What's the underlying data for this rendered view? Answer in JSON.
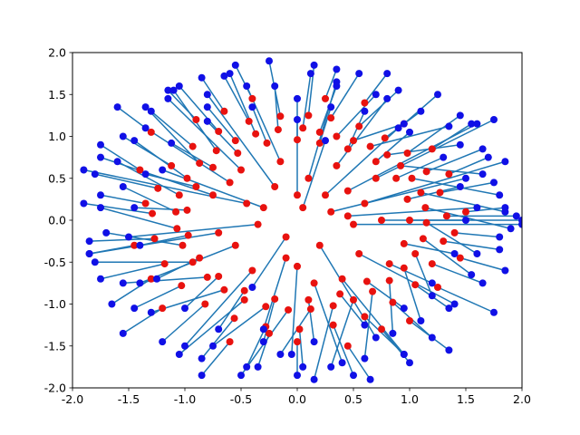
{
  "chart_data": {
    "type": "scatter",
    "title": "",
    "xlabel": "",
    "ylabel": "",
    "xlim": [
      -2.0,
      2.0
    ],
    "ylim": [
      -2.0,
      2.0
    ],
    "grid": false,
    "legend": "none",
    "xticks": [
      "-2.0",
      "-1.5",
      "-1.0",
      "-0.5",
      "0.0",
      "0.5",
      "1.0",
      "1.5",
      "2.0"
    ],
    "yticks": [
      "-2.0",
      "-1.5",
      "-1.0",
      "-0.5",
      "0.0",
      "0.5",
      "1.0",
      "1.5",
      "2.0"
    ],
    "colors": {
      "ring_points": "#e8120f",
      "displaced_points": "#1010e6",
      "displacement_lines": "#1f77b4"
    },
    "series": [
      {
        "kind": "ring",
        "marker": "circle",
        "points": [
          [
            0.05,
            1.1
          ],
          [
            0.2,
            1.05
          ],
          [
            0.35,
            1.0
          ],
          [
            0.5,
            0.95
          ],
          [
            0.65,
            0.88
          ],
          [
            0.8,
            0.78
          ],
          [
            0.92,
            0.65
          ],
          [
            1.02,
            0.5
          ],
          [
            1.1,
            0.33
          ],
          [
            1.14,
            0.15
          ],
          [
            1.15,
            -0.03
          ],
          [
            1.12,
            -0.22
          ],
          [
            1.05,
            -0.4
          ],
          [
            0.95,
            -0.57
          ],
          [
            0.82,
            -0.72
          ],
          [
            0.67,
            -0.85
          ],
          [
            0.5,
            -0.95
          ],
          [
            0.32,
            -1.02
          ],
          [
            0.12,
            -1.06
          ],
          [
            -0.08,
            -1.07
          ],
          [
            -0.28,
            -1.03
          ],
          [
            -0.47,
            -0.95
          ],
          [
            -0.65,
            -0.83
          ],
          [
            -0.8,
            -0.68
          ],
          [
            -0.93,
            -0.5
          ],
          [
            -1.02,
            -0.3
          ],
          [
            -1.07,
            -0.1
          ],
          [
            -1.08,
            0.1
          ],
          [
            -1.05,
            0.3
          ],
          [
            -0.98,
            0.5
          ],
          [
            -0.87,
            0.68
          ],
          [
            -0.72,
            0.83
          ],
          [
            -0.55,
            0.95
          ],
          [
            -0.37,
            1.03
          ],
          [
            -0.17,
            1.08
          ],
          [
            0.1,
            1.25
          ],
          [
            0.3,
            1.22
          ],
          [
            0.55,
            1.12
          ],
          [
            0.78,
            0.98
          ],
          [
            0.98,
            0.8
          ],
          [
            1.15,
            0.58
          ],
          [
            1.27,
            0.33
          ],
          [
            1.33,
            0.05
          ],
          [
            1.3,
            -0.25
          ],
          [
            1.2,
            -0.52
          ],
          [
            1.05,
            -0.77
          ],
          [
            0.85,
            -0.98
          ],
          [
            0.6,
            -1.15
          ],
          [
            0.32,
            -1.25
          ],
          [
            0.02,
            -1.3
          ],
          [
            -0.28,
            -1.27
          ],
          [
            -0.56,
            -1.17
          ],
          [
            -0.82,
            -1.0
          ],
          [
            -1.03,
            -0.78
          ],
          [
            -1.18,
            -0.52
          ],
          [
            -1.27,
            -0.22
          ],
          [
            -1.29,
            0.08
          ],
          [
            -1.24,
            0.38
          ],
          [
            -1.12,
            0.65
          ],
          [
            -0.93,
            0.88
          ],
          [
            -0.7,
            1.06
          ],
          [
            -0.43,
            1.18
          ],
          [
            -0.15,
            1.24
          ],
          [
            0.2,
            0.92
          ],
          [
            0.45,
            0.85
          ],
          [
            0.7,
            0.7
          ],
          [
            0.88,
            0.5
          ],
          [
            0.98,
            0.25
          ],
          [
            1.0,
            0.0
          ],
          [
            0.95,
            -0.28
          ],
          [
            0.82,
            -0.52
          ],
          [
            0.62,
            -0.73
          ],
          [
            0.38,
            -0.88
          ],
          [
            0.1,
            -0.95
          ],
          [
            -0.2,
            -0.94
          ],
          [
            -0.47,
            -0.84
          ],
          [
            -0.7,
            -0.67
          ],
          [
            -0.87,
            -0.45
          ],
          [
            -0.97,
            -0.18
          ],
          [
            -0.98,
            0.12
          ],
          [
            -0.9,
            0.4
          ],
          [
            -0.75,
            0.63
          ],
          [
            -0.53,
            0.8
          ],
          [
            -0.27,
            0.92
          ],
          [
            0.0,
            0.96
          ],
          [
            -1.4,
            0.6
          ],
          [
            -1.3,
            -0.7
          ],
          [
            -0.6,
            -1.45
          ],
          [
            0.45,
            -1.5
          ],
          [
            1.25,
            -0.8
          ],
          [
            1.5,
            0.1
          ],
          [
            1.2,
            0.85
          ],
          [
            0.6,
            1.4
          ],
          [
            -0.4,
            1.45
          ],
          [
            -1.35,
            0.2
          ],
          [
            -1.2,
            -1.05
          ],
          [
            0.0,
            -1.45
          ],
          [
            1.0,
            -1.2
          ],
          [
            1.45,
            -0.45
          ],
          [
            1.35,
            0.55
          ],
          [
            0.25,
            1.45
          ],
          [
            -0.9,
            1.2
          ],
          [
            -1.45,
            -0.3
          ],
          [
            -0.25,
            -1.35
          ],
          [
            0.75,
            -1.3
          ],
          [
            1.4,
            -0.15
          ],
          [
            0.95,
            1.15
          ],
          [
            -0.65,
            1.3
          ],
          [
            -1.3,
            1.05
          ]
        ],
        "displaced": [
          [
            0.12,
            1.75
          ],
          [
            0.35,
            1.6
          ],
          [
            0.7,
            1.5
          ],
          [
            0.95,
            1.15
          ],
          [
            1.35,
            1.12
          ],
          [
            1.45,
            0.9
          ],
          [
            1.65,
            0.55
          ],
          [
            1.8,
            0.3
          ],
          [
            1.85,
            0.1
          ],
          [
            1.9,
            -0.1
          ],
          [
            1.6,
            -0.4
          ],
          [
            1.55,
            -0.65
          ],
          [
            1.2,
            -0.9
          ],
          [
            1.1,
            -1.2
          ],
          [
            0.85,
            -1.35
          ],
          [
            0.6,
            -1.65
          ],
          [
            0.3,
            -1.75
          ],
          [
            0.15,
            -1.9
          ],
          [
            -0.15,
            -1.6
          ],
          [
            -0.5,
            -1.85
          ],
          [
            -0.75,
            -1.5
          ],
          [
            -1.05,
            -1.6
          ],
          [
            -1.3,
            -1.1
          ],
          [
            -1.55,
            -0.75
          ],
          [
            -1.8,
            -0.5
          ],
          [
            -1.7,
            -0.15
          ],
          [
            -1.75,
            0.15
          ],
          [
            -1.55,
            0.4
          ],
          [
            -1.6,
            0.7
          ],
          [
            -1.45,
            0.95
          ],
          [
            -1.35,
            1.35
          ],
          [
            -1.1,
            1.55
          ],
          [
            -0.8,
            1.35
          ],
          [
            -0.6,
            1.75
          ],
          [
            -0.2,
            1.6
          ],
          [
            0.15,
            1.85
          ],
          [
            0.55,
            1.75
          ],
          [
            0.9,
            1.55
          ],
          [
            1.1,
            1.3
          ],
          [
            1.45,
            1.25
          ],
          [
            1.65,
            0.85
          ],
          [
            1.75,
            0.45
          ],
          [
            1.95,
            0.05
          ],
          [
            1.8,
            -0.35
          ],
          [
            1.65,
            -0.75
          ],
          [
            1.35,
            -1.05
          ],
          [
            1.2,
            -1.4
          ],
          [
            0.95,
            -1.6
          ],
          [
            0.5,
            -1.85
          ],
          [
            0.05,
            -1.75
          ],
          [
            -0.45,
            -1.75
          ],
          [
            -0.85,
            -1.65
          ],
          [
            -1.2,
            -1.45
          ],
          [
            -1.45,
            -1.05
          ],
          [
            -1.75,
            -0.7
          ],
          [
            -1.85,
            -0.25
          ],
          [
            -1.9,
            0.2
          ],
          [
            -1.8,
            0.55
          ],
          [
            -1.55,
            1.0
          ],
          [
            -1.3,
            1.3
          ],
          [
            -1.05,
            1.6
          ],
          [
            -0.65,
            1.72
          ],
          [
            -0.25,
            1.9
          ],
          [
            0.3,
            1.35
          ],
          [
            0.6,
            1.3
          ],
          [
            1.0,
            1.05
          ],
          [
            1.3,
            0.75
          ],
          [
            1.45,
            0.4
          ],
          [
            1.5,
            0.0
          ],
          [
            1.4,
            -0.4
          ],
          [
            1.2,
            -0.75
          ],
          [
            0.95,
            -1.05
          ],
          [
            0.6,
            -1.25
          ],
          [
            0.15,
            -1.45
          ],
          [
            -0.3,
            -1.45
          ],
          [
            -0.7,
            -1.3
          ],
          [
            -1.0,
            -1.05
          ],
          [
            -1.25,
            -0.7
          ],
          [
            -1.4,
            -0.3
          ],
          [
            -1.45,
            0.15
          ],
          [
            -1.35,
            0.55
          ],
          [
            -1.12,
            0.92
          ],
          [
            -0.8,
            1.18
          ],
          [
            -0.4,
            1.35
          ],
          [
            0.0,
            1.45
          ],
          [
            -1.75,
            0.9
          ],
          [
            -1.65,
            -1.0
          ],
          [
            -0.85,
            -1.85
          ],
          [
            0.65,
            -1.9
          ],
          [
            1.75,
            -1.1
          ],
          [
            1.85,
            0.15
          ],
          [
            1.55,
            1.15
          ],
          [
            0.8,
            1.75
          ],
          [
            -0.55,
            1.85
          ],
          [
            -1.75,
            0.3
          ],
          [
            -1.55,
            -1.35
          ],
          [
            0.0,
            -1.85
          ],
          [
            1.35,
            -1.55
          ],
          [
            1.85,
            -0.6
          ],
          [
            1.7,
            0.75
          ],
          [
            0.35,
            1.8
          ],
          [
            -1.15,
            1.55
          ],
          [
            -1.85,
            -0.4
          ],
          [
            -0.35,
            -1.75
          ],
          [
            1.0,
            -1.7
          ],
          [
            1.8,
            -0.2
          ],
          [
            1.25,
            1.5
          ],
          [
            -0.85,
            1.7
          ],
          [
            -1.6,
            1.35
          ]
        ]
      },
      {
        "kind": "center",
        "marker": "circle",
        "points": [
          [
            0.05,
            0.15
          ],
          [
            0.3,
            0.1
          ],
          [
            0.5,
            -0.05
          ],
          [
            0.45,
            0.35
          ],
          [
            0.2,
            -0.3
          ],
          [
            -0.1,
            -0.2
          ],
          [
            -0.35,
            -0.05
          ],
          [
            -0.45,
            0.2
          ],
          [
            -0.2,
            0.4
          ],
          [
            0.1,
            0.5
          ],
          [
            0.6,
            0.2
          ],
          [
            0.55,
            -0.4
          ],
          [
            0.0,
            -0.55
          ],
          [
            -0.55,
            -0.3
          ],
          [
            -0.6,
            0.45
          ],
          [
            -0.15,
            0.7
          ],
          [
            0.35,
            0.65
          ],
          [
            0.75,
            0.0
          ],
          [
            0.15,
            -0.75
          ],
          [
            -0.7,
            -0.15
          ],
          [
            -0.3,
            0.15
          ],
          [
            0.25,
            0.3
          ],
          [
            0.7,
            0.5
          ],
          [
            -0.4,
            -0.6
          ],
          [
            0.4,
            -0.7
          ],
          [
            -0.75,
            0.3
          ],
          [
            0.0,
            0.3
          ],
          [
            -0.1,
            -0.45
          ],
          [
            0.45,
            0.05
          ],
          [
            -0.5,
            0.6
          ]
        ],
        "displaced": [
          [
            0.25,
            0.95
          ],
          [
            1.5,
            0.5
          ],
          [
            2.0,
            -0.05
          ],
          [
            1.6,
            1.15
          ],
          [
            0.7,
            -1.4
          ],
          [
            -0.4,
            -0.8
          ],
          [
            -1.5,
            -0.2
          ],
          [
            -1.9,
            0.6
          ],
          [
            -0.8,
            1.5
          ],
          [
            0.35,
            1.65
          ],
          [
            1.85,
            0.7
          ],
          [
            1.4,
            -1.0
          ],
          [
            -0.05,
            -1.6
          ],
          [
            -1.4,
            -0.75
          ],
          [
            -1.35,
            1.1
          ],
          [
            -0.45,
            1.6
          ],
          [
            0.8,
            1.45
          ],
          [
            2.0,
            0.0
          ],
          [
            0.4,
            -1.7
          ],
          [
            -1.85,
            -0.4
          ],
          [
            -1.2,
            0.6
          ],
          [
            0.9,
            1.1
          ],
          [
            1.75,
            1.2
          ],
          [
            -1.0,
            -1.5
          ],
          [
            0.95,
            -1.6
          ],
          [
            -1.75,
            0.75
          ],
          [
            0.0,
            1.2
          ],
          [
            -0.3,
            -1.3
          ],
          [
            1.6,
            0.15
          ],
          [
            -1.15,
            1.45
          ]
        ]
      }
    ]
  }
}
